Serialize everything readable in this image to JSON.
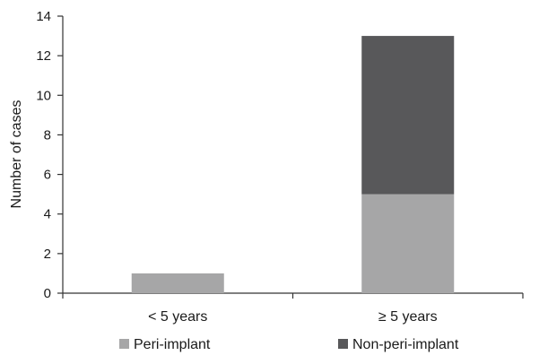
{
  "chart_data": {
    "type": "bar",
    "stacked": true,
    "categories": [
      "< 5 years",
      "≥ 5 years"
    ],
    "series": [
      {
        "name": "Peri-implant",
        "values": [
          1,
          5
        ],
        "color": "#a6a6a7"
      },
      {
        "name": "Non-peri-implant",
        "values": [
          0,
          8
        ],
        "color": "#58585a"
      }
    ],
    "ylabel": "Number of cases",
    "xlabel": "",
    "ylim": [
      0,
      14
    ],
    "yticks": [
      "0",
      "2",
      "4",
      "6",
      "8",
      "10",
      "12",
      "14"
    ],
    "legend_position": "bottom",
    "grid": false
  }
}
